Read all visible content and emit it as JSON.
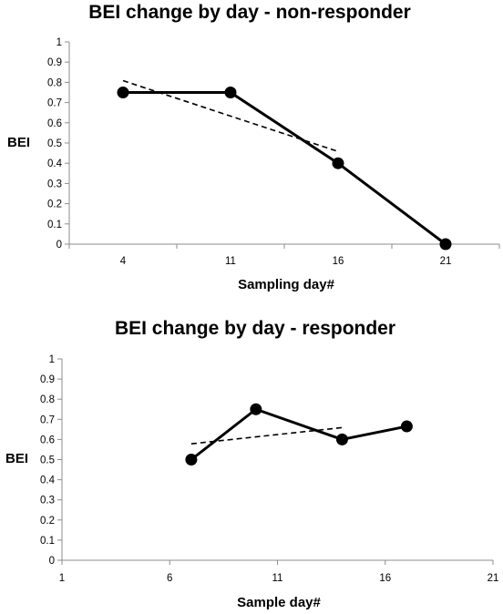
{
  "chart_data": [
    {
      "type": "line",
      "title": "BEI change by day - non-responder",
      "xlabel": "Sampling day#",
      "ylabel": "BEI",
      "x_axis": "category",
      "categories": [
        "4",
        "11",
        "16",
        "21"
      ],
      "series": [
        {
          "values": [
            0.75,
            0.75,
            0.4,
            0.0
          ],
          "style": "solid",
          "markers": true
        }
      ],
      "trendline": {
        "type": "linear",
        "style": "dashed",
        "from_index": 0,
        "to_index": 2
      },
      "ylim": [
        0,
        1
      ],
      "yticks": [
        "0",
        "0.1",
        "0.2",
        "0.3",
        "0.4",
        "0.5",
        "0.6",
        "0.7",
        "0.8",
        "0.9",
        "1"
      ],
      "grid": false,
      "legend": "none"
    },
    {
      "type": "scatter",
      "title": "BEI change by day - responder",
      "xlabel": "Sample day#",
      "ylabel": "BEI",
      "x_axis": "numeric",
      "x": [
        7,
        10,
        14,
        17
      ],
      "series": [
        {
          "values": [
            0.5,
            0.75,
            0.6,
            0.665
          ],
          "style": "solid",
          "markers": true
        }
      ],
      "trendline": {
        "type": "linear",
        "style": "dashed",
        "from_x": 7,
        "to_x": 14
      },
      "xlim": [
        1,
        21
      ],
      "xticks": [
        "1",
        "6",
        "11",
        "16",
        "21"
      ],
      "ylim": [
        0,
        1
      ],
      "yticks": [
        "0",
        "0.1",
        "0.2",
        "0.3",
        "0.4",
        "0.5",
        "0.6",
        "0.7",
        "0.8",
        "0.9",
        "1"
      ],
      "grid": false,
      "legend": "none"
    }
  ]
}
